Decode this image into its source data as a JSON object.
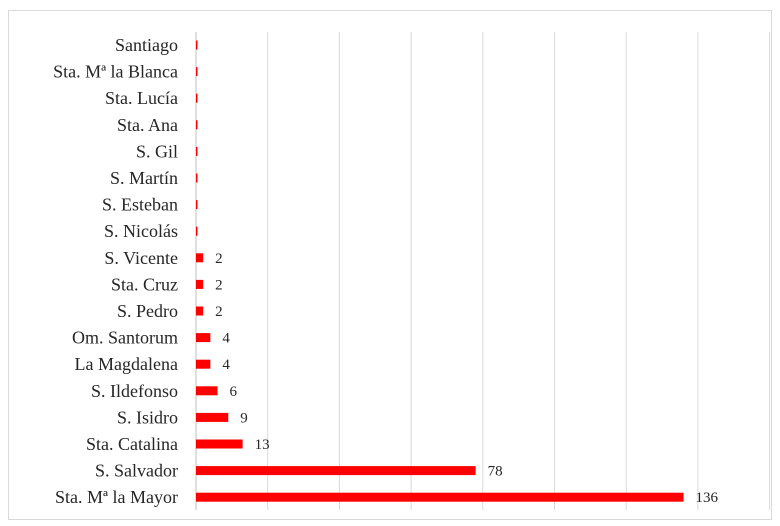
{
  "chart_data": {
    "type": "bar",
    "orientation": "horizontal",
    "title": "",
    "xlabel": "",
    "ylabel": "",
    "xlim": [
      0,
      160
    ],
    "grid": "vertical",
    "categories": [
      "Santiago",
      "Sta. Mª la Blanca",
      "Sta. Lucía",
      "Sta. Ana",
      "S. Gil",
      "S. Martín",
      "S. Esteban",
      "S. Nicolás",
      "S. Vicente",
      "Sta. Cruz",
      "S. Pedro",
      "Om. Santorum",
      "La Magdalena",
      "S. Ildefonso",
      "S. Isidro",
      "Sta. Catalina",
      "S. Salvador",
      "Sta. Mª la Mayor"
    ],
    "values": [
      0,
      0,
      0,
      0,
      0,
      0,
      0,
      0,
      2,
      2,
      2,
      4,
      4,
      6,
      9,
      13,
      78,
      136
    ],
    "labels": [
      "",
      "",
      "",
      "",
      "",
      "",
      "",
      "",
      "2",
      "2",
      "2",
      "4",
      "4",
      "6",
      "9",
      "13",
      "78",
      "136"
    ],
    "bar_color": "#ff0000"
  }
}
